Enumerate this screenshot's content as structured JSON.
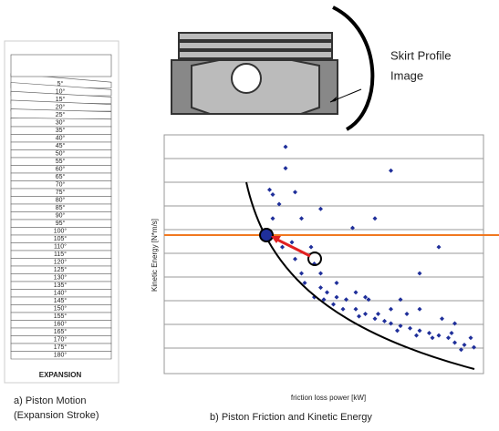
{
  "annotation": {
    "skirt_profile": [
      "Skirt Profile",
      "Image"
    ]
  },
  "panel_a": {
    "angles": [
      "5°",
      "10°",
      "15°",
      "20°",
      "25°",
      "30°",
      "35°",
      "40°",
      "45°",
      "50°",
      "55°",
      "60°",
      "65°",
      "70°",
      "75°",
      "80°",
      "85°",
      "90°",
      "95°",
      "100°",
      "105°",
      "110°",
      "115°",
      "120°",
      "125°",
      "130°",
      "135°",
      "140°",
      "145°",
      "150°",
      "155°",
      "160°",
      "165°",
      "170°",
      "175°",
      "180°"
    ],
    "footer": "EXPANSION",
    "caption": [
      "a) Piston Motion",
      "(Expansion Stroke)"
    ]
  },
  "chart_data": {
    "type": "scatter",
    "xlabel": "friction loss power [kW]",
    "ylabel": "Kinetic Energy [N*m/s]",
    "caption": "b) Piston Friction and Kinetic Energy",
    "color": "#1f2f9a",
    "xlim": [
      0,
      100
    ],
    "ylim": [
      0,
      100
    ],
    "x": [
      38,
      38,
      71,
      33,
      34,
      36,
      41,
      43,
      49,
      59,
      66,
      86,
      80,
      33,
      40,
      46,
      47,
      43,
      44,
      49,
      51,
      54,
      57,
      53,
      60,
      63,
      66,
      69,
      71,
      74,
      77,
      80,
      83,
      86,
      89,
      91,
      94,
      97,
      47,
      50,
      56,
      61,
      67,
      73,
      79,
      84,
      90,
      93,
      96,
      60,
      64,
      71,
      76,
      49,
      54,
      63,
      74,
      80,
      87,
      91,
      34,
      37,
      41
    ],
    "y": [
      95,
      86,
      85,
      77,
      75,
      71,
      76,
      65,
      69,
      61,
      65,
      53,
      42,
      59,
      55,
      53,
      46,
      42,
      38,
      36,
      34,
      32,
      31,
      29,
      27,
      25,
      23,
      22,
      21,
      20,
      19,
      18,
      17,
      16,
      15,
      13,
      12,
      11,
      32,
      31,
      27,
      24,
      25,
      18,
      16,
      15,
      17,
      10,
      15,
      34,
      31,
      27,
      25,
      42,
      38,
      32,
      31,
      27,
      23,
      21,
      65,
      53,
      48
    ]
  }
}
